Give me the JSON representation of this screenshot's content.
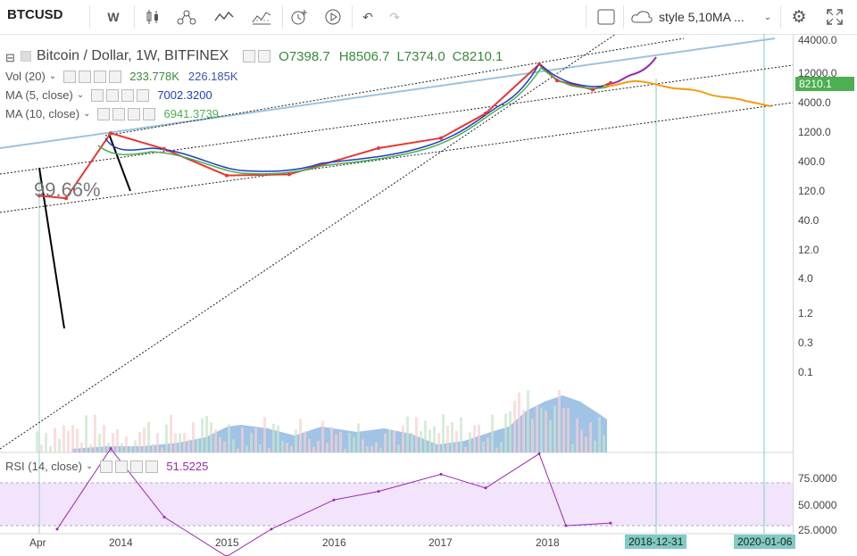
{
  "toolbar": {
    "symbol": "BTCUSD",
    "interval": "W",
    "style_label": "style 5,10MA ...",
    "colors": {
      "accent": "#2196f3"
    }
  },
  "legend": {
    "title": "Bitcoin / Dollar, 1W, BITFINEX",
    "o": "O7398.7",
    "h": "H8506.7",
    "l": "L7374.0",
    "c": "C8210.1",
    "vol_label": "Vol (20)",
    "vol_v1": "233.778K",
    "vol_v2": "226.185K",
    "ma5_label": "MA (5, close)",
    "ma5_val": "7002.3200",
    "ma10_label": "MA (10, close)",
    "ma10_val": "6941.3739",
    "annotation": "99.66%"
  },
  "price_axis": [
    "44000.0",
    "12000.0",
    "4000.0",
    "1200.0",
    "400.0",
    "120.0",
    "40.0",
    "12.0",
    "4.0",
    "1.2",
    "0.3",
    "0.1"
  ],
  "price_tag": "8210.1",
  "rsi": {
    "label": "RSI (14, close)",
    "value": "51.5225",
    "axis": [
      "75.0000",
      "50.0000",
      "25.0000"
    ]
  },
  "time_axis": [
    "Apr",
    "2014",
    "2015",
    "2016",
    "2017",
    "2018"
  ],
  "date_tags": [
    "2018-12-31",
    "2020-01-06"
  ],
  "chart_data": [
    {
      "type": "line",
      "title": "Bitcoin / Dollar, 1W, BITFINEX",
      "log_scale": true,
      "x": [
        "2013-04",
        "2013-07",
        "2013-12",
        "2014-06",
        "2015-01",
        "2015-08",
        "2016-06",
        "2017-01",
        "2017-06",
        "2017-12",
        "2018-02",
        "2018-06",
        "2018-08"
      ],
      "series": [
        {
          "name": "close",
          "values": [
            100,
            90,
            1150,
            620,
            220,
            230,
            640,
            950,
            2500,
            17000,
            9000,
            6300,
            8210.1
          ]
        }
      ],
      "ylim": [
        0.1,
        44000
      ]
    },
    {
      "type": "line",
      "title": "RSI (14, close)",
      "x": [
        "2013-06",
        "2013-12",
        "2014-06",
        "2015-01",
        "2015-06",
        "2016-01",
        "2016-06",
        "2017-01",
        "2017-06",
        "2017-12",
        "2018-03",
        "2018-08"
      ],
      "series": [
        {
          "name": "RSI (14, close)",
          "values": [
            48,
            95,
            55,
            32,
            48,
            65,
            70,
            80,
            72,
            92,
            50,
            51.5225
          ]
        }
      ],
      "ylim": [
        25,
        100
      ]
    }
  ]
}
